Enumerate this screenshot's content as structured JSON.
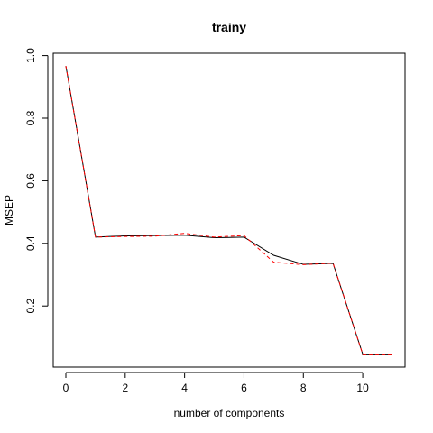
{
  "chart_data": {
    "type": "line",
    "title": "trainy",
    "xlabel": "number of components",
    "ylabel": "MSEP",
    "x": [
      0,
      1,
      2,
      3,
      4,
      5,
      6,
      7,
      8,
      9,
      10,
      11
    ],
    "xlim": [
      0,
      11
    ],
    "ylim": [
      0.045,
      0.97
    ],
    "x_ticks": [
      0,
      2,
      4,
      6,
      8,
      10
    ],
    "y_ticks": [
      0.2,
      0.4,
      0.6,
      0.8,
      1.0
    ],
    "x_tick_labels": [
      "0",
      "2",
      "4",
      "6",
      "8",
      "10"
    ],
    "y_tick_labels": [
      "0.2",
      "0.4",
      "0.6",
      "0.8",
      "1.0"
    ],
    "grid": false,
    "series": [
      {
        "values": [
          0.967,
          0.42,
          0.424,
          0.425,
          0.426,
          0.418,
          0.42,
          0.362,
          0.333,
          0.336,
          0.046,
          0.046
        ],
        "color": "#000000",
        "style": "solid"
      },
      {
        "values": [
          0.967,
          0.42,
          0.422,
          0.423,
          0.432,
          0.42,
          0.425,
          0.34,
          0.332,
          0.337,
          0.046,
          0.046
        ],
        "color": "#ff0000",
        "style": "dashed"
      }
    ]
  }
}
